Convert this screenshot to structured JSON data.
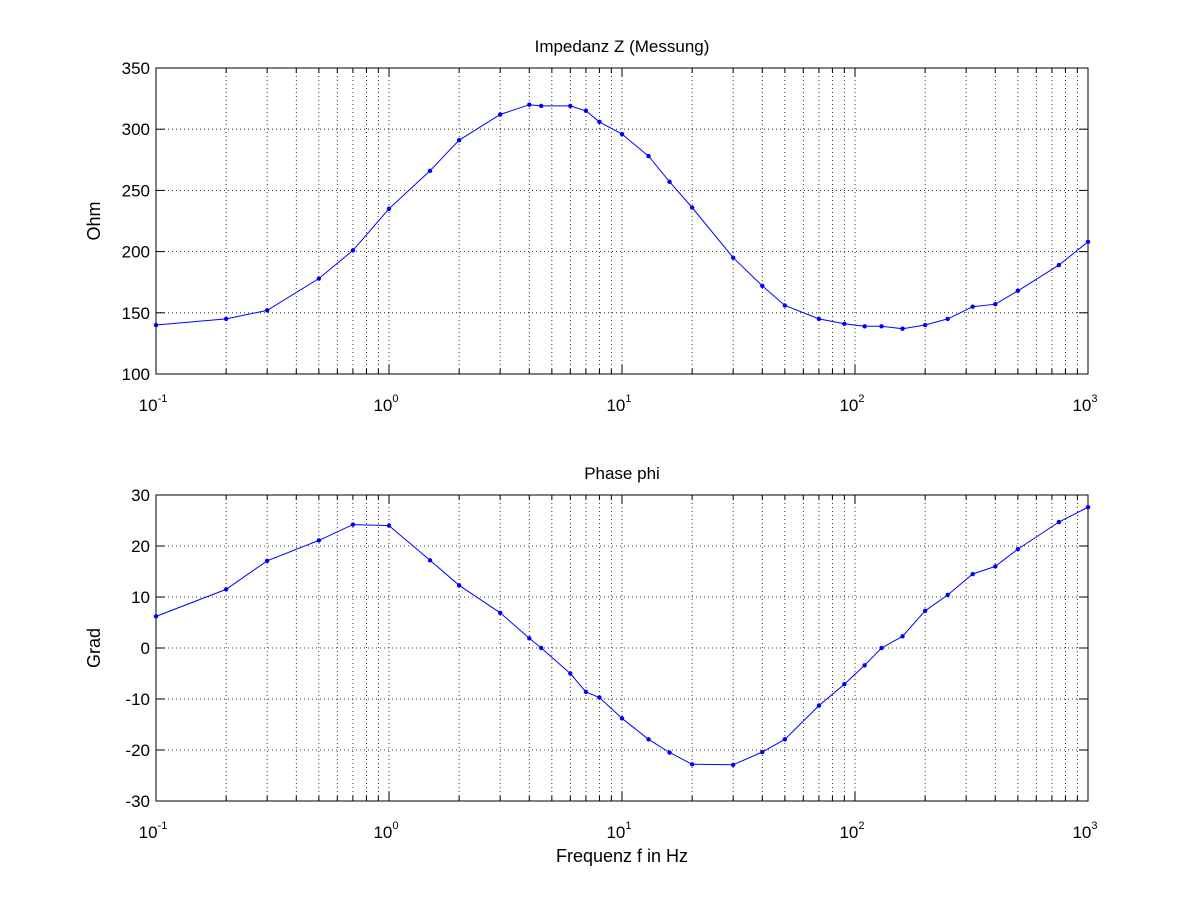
{
  "chart_data": [
    {
      "type": "line",
      "title": "Impedanz Z (Messung)",
      "xlabel": "",
      "ylabel": "Ohm",
      "xscale": "log",
      "xlim": [
        0.1,
        1000
      ],
      "ylim": [
        100,
        350
      ],
      "xticks": [
        0.1,
        1,
        10,
        100,
        1000
      ],
      "xtick_labels": [
        {
          "base": "10",
          "exp": "-1"
        },
        {
          "base": "10",
          "exp": "0"
        },
        {
          "base": "10",
          "exp": "1"
        },
        {
          "base": "10",
          "exp": "2"
        },
        {
          "base": "10",
          "exp": "3"
        }
      ],
      "yticks": [
        "100",
        "150",
        "200",
        "250",
        "300",
        "350"
      ],
      "grid": true,
      "color": "#0000ff",
      "marker": "dot",
      "series": [
        {
          "x": [
            0.1,
            0.2,
            0.3,
            0.5,
            0.7,
            1,
            1.5,
            2,
            3,
            4,
            4.5,
            6,
            7,
            8,
            10,
            13,
            16,
            20,
            30,
            40,
            50,
            70,
            90,
            110,
            130,
            160,
            200,
            250,
            320,
            400,
            500,
            750,
            1000
          ],
          "values": [
            140,
            145,
            152,
            178,
            201,
            235,
            266,
            291,
            312,
            320,
            319,
            319,
            315,
            306,
            296,
            278,
            257,
            236,
            195,
            172,
            156,
            145,
            141,
            139,
            139,
            137,
            140,
            145,
            155,
            157,
            168,
            189,
            208
          ]
        }
      ]
    },
    {
      "type": "line",
      "title": "Phase phi",
      "xlabel": "Frequenz f in Hz",
      "ylabel": "Grad",
      "xscale": "log",
      "xlim": [
        0.1,
        1000
      ],
      "ylim": [
        -30,
        30
      ],
      "xticks": [
        0.1,
        1,
        10,
        100,
        1000
      ],
      "xtick_labels": [
        {
          "base": "10",
          "exp": "-1"
        },
        {
          "base": "10",
          "exp": "0"
        },
        {
          "base": "10",
          "exp": "1"
        },
        {
          "base": "10",
          "exp": "2"
        },
        {
          "base": "10",
          "exp": "3"
        }
      ],
      "yticks": [
        "-30",
        "-20",
        "-10",
        "0",
        "10",
        "20",
        "30"
      ],
      "grid": true,
      "color": "#0000ff",
      "marker": "dot",
      "series": [
        {
          "x": [
            0.1,
            0.2,
            0.3,
            0.5,
            0.7,
            1,
            1.5,
            2,
            3,
            4,
            4.5,
            6,
            7,
            8,
            10,
            13,
            16,
            20,
            30,
            40,
            50,
            70,
            90,
            110,
            130,
            160,
            200,
            250,
            320,
            400,
            500,
            750,
            1000
          ],
          "values": [
            6.2,
            11.5,
            17.1,
            21.1,
            24.2,
            24.0,
            17.2,
            12.3,
            6.9,
            1.9,
            0,
            -5.0,
            -8.6,
            -9.7,
            -13.8,
            -17.9,
            -20.5,
            -22.8,
            -22.9,
            -20.4,
            -17.9,
            -11.3,
            -7.1,
            -3.4,
            0,
            2.3,
            7.3,
            10.4,
            14.5,
            16.0,
            19.4,
            24.7,
            27.6
          ]
        }
      ]
    }
  ]
}
